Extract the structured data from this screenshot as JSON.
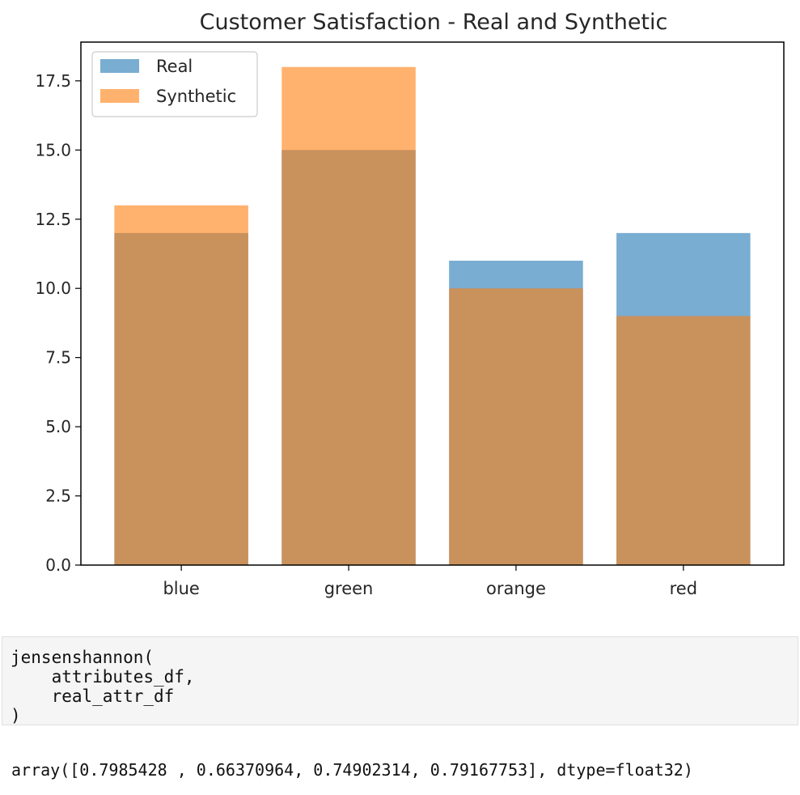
{
  "chart_data": {
    "type": "bar",
    "title": "Customer Satisfaction - Real and Synthetic",
    "xlabel": "",
    "ylabel": "",
    "categories": [
      "blue",
      "green",
      "orange",
      "red"
    ],
    "series": [
      {
        "name": "Real",
        "values": [
          12,
          15,
          11,
          12
        ],
        "color": "#1f77b4",
        "alpha": 0.6
      },
      {
        "name": "Synthetic",
        "values": [
          13,
          18,
          10,
          9
        ],
        "color": "#ff7f0e",
        "alpha": 0.6
      }
    ],
    "ylim": [
      0,
      18.9
    ],
    "yticks": [
      "0.0",
      "2.5",
      "5.0",
      "7.5",
      "10.0",
      "12.5",
      "15.0",
      "17.5"
    ],
    "ytick_values": [
      0,
      2.5,
      5,
      7.5,
      10,
      12.5,
      15,
      17.5
    ],
    "grid": false,
    "legend": "top-left",
    "overlaid": true
  },
  "code": {
    "lines": [
      "jensenshannon(",
      "    attributes_df,",
      "    real_attr_df",
      ")"
    ]
  },
  "output": {
    "text": "array([0.7985428 , 0.66370964, 0.74902314, 0.79167753], dtype=float32)"
  }
}
